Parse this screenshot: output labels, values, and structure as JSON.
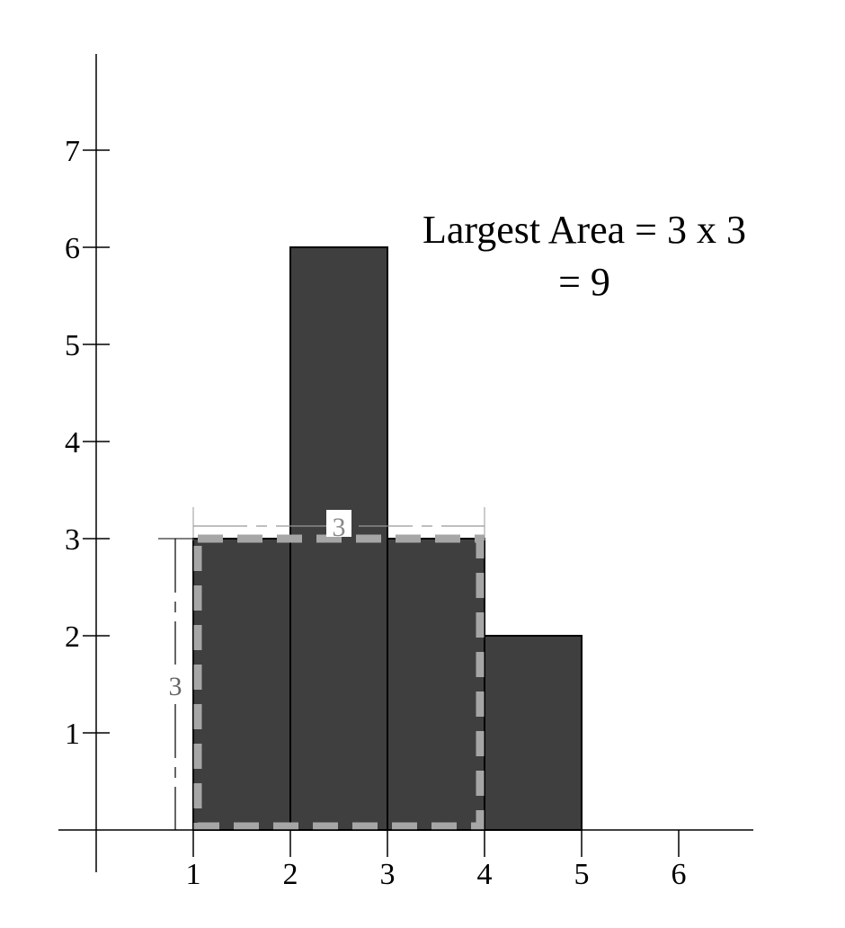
{
  "chart_data": {
    "type": "bar",
    "title": "",
    "xlabel": "",
    "ylabel": "",
    "x_ticks": [
      "1",
      "2",
      "3",
      "4",
      "5",
      "6"
    ],
    "y_ticks": [
      "1",
      "2",
      "3",
      "4",
      "5",
      "6",
      "7"
    ],
    "xlim": [
      0,
      6.8
    ],
    "ylim": [
      -0.5,
      8
    ],
    "bars": [
      {
        "x_start": 1,
        "x_end": 2,
        "height": 3
      },
      {
        "x_start": 2,
        "x_end": 3,
        "height": 6
      },
      {
        "x_start": 3,
        "x_end": 4,
        "height": 3
      },
      {
        "x_start": 4,
        "x_end": 5,
        "height": 2
      }
    ],
    "highlight": {
      "x_start": 1,
      "x_end": 4,
      "height": 3
    },
    "width_label": "3",
    "height_label": "3",
    "annotation_line1": "Largest Area = 3 x 3",
    "annotation_line2": "= 9",
    "colors": {
      "bar_fill": "#3f3f3f",
      "bar_stroke": "#000000",
      "highlight_stroke": "#a6a6a6",
      "axis": "#000000",
      "dimension_line": "#999999"
    }
  }
}
